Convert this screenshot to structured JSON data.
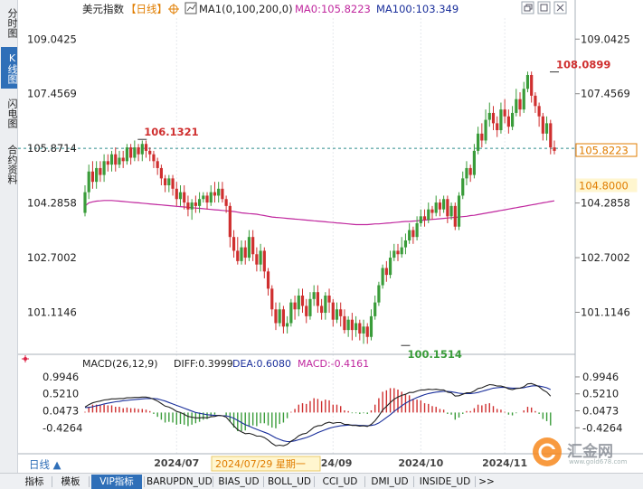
{
  "side_tabs": [
    "分时图",
    "K线图",
    "闪电图",
    "合约资料"
  ],
  "active_side_tab": 1,
  "header": {
    "name": "美元指数",
    "period": "【日线】",
    "ma_label": "MA1(0,100,200,0)",
    "ma0_label": "MA0:105.8223",
    "ma100_label": "MA100:103.349"
  },
  "header_colors": {
    "ma0": "#c0279e",
    "ma100": "#1a2f9b",
    "period": "#e07d00"
  },
  "bottom_tabs": [
    "指标",
    "模板",
    "VIP指标",
    "BARUPDN_UD",
    "BIAS_UD",
    "BOLL_UD",
    "CCI_UD",
    "DMI_UD",
    "INSIDE_UD",
    ">>"
  ],
  "active_bottom_tab": 2,
  "period_button": "日线 ▲",
  "crosshair_date": "2024/07/29 星期一",
  "watermark": "汇金网",
  "watermark_sub": "www.gold678.com",
  "icons": [
    "chart-type-icon",
    "window-restore-icon",
    "window-maximize-icon",
    "close-icon"
  ],
  "chart_data": [
    {
      "type": "candlestick",
      "title": "美元指数",
      "period": "日线",
      "y_ticks": [
        109.0425,
        107.4569,
        105.8714,
        104.2858,
        102.7002,
        101.1146
      ],
      "ylim": [
        100.0,
        109.6
      ],
      "x_tick_labels": [
        "2024/07",
        "024/09",
        "2024/10",
        "2024/11"
      ],
      "x_tick_positions": [
        24,
        65,
        88,
        110
      ],
      "current_price": 105.8223,
      "current_price_label": "105.8223",
      "reference_price_label": "105.8714",
      "cursor_price_label": "104.8000",
      "annotations": [
        {
          "text": "106.1321",
          "value": 106.1321,
          "index": 15,
          "kind": "high"
        },
        {
          "text": "108.0899",
          "value": 108.0899,
          "index": 123,
          "kind": "high"
        },
        {
          "text": "100.1514",
          "value": 100.1514,
          "index": 84,
          "kind": "low"
        }
      ],
      "candles": [
        [
          104.0,
          104.6,
          104.8,
          103.9
        ],
        [
          104.6,
          105.2,
          105.4,
          104.4
        ],
        [
          105.2,
          104.9,
          105.5,
          104.7
        ],
        [
          104.9,
          105.3,
          105.5,
          104.7
        ],
        [
          105.3,
          105.1,
          105.5,
          104.9
        ],
        [
          105.1,
          105.5,
          105.7,
          104.9
        ],
        [
          105.5,
          105.4,
          105.7,
          105.2
        ],
        [
          105.4,
          105.7,
          105.8,
          105.2
        ],
        [
          105.7,
          105.4,
          105.9,
          105.2
        ],
        [
          105.4,
          105.6,
          105.8,
          105.3
        ],
        [
          105.6,
          105.5,
          105.8,
          105.3
        ],
        [
          105.5,
          105.9,
          106.0,
          105.4
        ],
        [
          105.9,
          105.6,
          106.0,
          105.4
        ],
        [
          105.6,
          105.9,
          106.1,
          105.5
        ],
        [
          105.9,
          105.7,
          106.0,
          105.5
        ],
        [
          105.7,
          106.0,
          106.1,
          105.5
        ],
        [
          106.0,
          105.8,
          106.1,
          105.6
        ],
        [
          105.8,
          105.7,
          105.9,
          105.5
        ],
        [
          105.7,
          105.5,
          105.8,
          105.3
        ],
        [
          105.5,
          105.3,
          105.6,
          105.1
        ],
        [
          105.3,
          105.0,
          105.4,
          104.8
        ],
        [
          105.0,
          104.8,
          105.1,
          104.6
        ],
        [
          104.8,
          105.0,
          105.1,
          104.6
        ],
        [
          105.0,
          104.7,
          105.1,
          104.5
        ],
        [
          104.7,
          104.4,
          104.9,
          104.2
        ],
        [
          104.4,
          104.6,
          104.8,
          104.2
        ],
        [
          104.6,
          104.3,
          104.8,
          104.1
        ],
        [
          104.3,
          104.1,
          104.5,
          103.9
        ],
        [
          104.1,
          104.3,
          104.4,
          103.8
        ],
        [
          104.3,
          104.2,
          104.5,
          104.0
        ],
        [
          104.2,
          104.4,
          104.6,
          104.0
        ],
        [
          104.4,
          104.5,
          104.6,
          104.3
        ],
        [
          104.5,
          104.3,
          104.6,
          104.1
        ],
        [
          104.3,
          104.6,
          104.8,
          104.2
        ],
        [
          104.6,
          104.5,
          104.9,
          104.3
        ],
        [
          104.5,
          104.7,
          104.9,
          104.3
        ],
        [
          104.7,
          104.4,
          104.9,
          104.3
        ],
        [
          104.4,
          104.2,
          104.5,
          104.0
        ],
        [
          104.2,
          103.3,
          104.3,
          103.0
        ],
        [
          103.3,
          102.9,
          103.5,
          102.7
        ],
        [
          102.9,
          102.6,
          103.3,
          102.5
        ],
        [
          102.6,
          103.0,
          103.2,
          102.5
        ],
        [
          103.0,
          102.7,
          103.2,
          102.5
        ],
        [
          102.7,
          103.3,
          103.5,
          102.6
        ],
        [
          103.3,
          102.8,
          103.5,
          102.6
        ],
        [
          102.8,
          102.5,
          103.0,
          102.3
        ],
        [
          102.5,
          102.9,
          103.1,
          102.3
        ],
        [
          102.9,
          102.3,
          103.0,
          102.1
        ],
        [
          102.3,
          101.8,
          102.4,
          101.6
        ],
        [
          101.8,
          101.2,
          101.9,
          101.0
        ],
        [
          101.2,
          100.8,
          101.4,
          100.6
        ],
        [
          100.8,
          101.2,
          101.4,
          100.7
        ],
        [
          101.2,
          100.7,
          101.3,
          100.5
        ],
        [
          100.7,
          100.8,
          101.0,
          100.5
        ],
        [
          100.8,
          101.4,
          101.5,
          100.7
        ],
        [
          101.4,
          101.2,
          101.6,
          100.9
        ],
        [
          101.2,
          101.6,
          101.8,
          101.0
        ],
        [
          101.6,
          101.3,
          101.8,
          101.1
        ],
        [
          101.3,
          101.0,
          101.5,
          100.8
        ],
        [
          101.0,
          101.5,
          101.7,
          100.9
        ],
        [
          101.5,
          101.7,
          101.9,
          101.3
        ],
        [
          101.7,
          101.3,
          101.9,
          101.1
        ],
        [
          101.3,
          101.1,
          101.5,
          100.9
        ],
        [
          101.1,
          101.6,
          101.7,
          100.9
        ],
        [
          101.6,
          101.4,
          101.8,
          101.1
        ],
        [
          101.4,
          100.9,
          101.5,
          100.7
        ],
        [
          100.9,
          101.2,
          101.4,
          100.8
        ],
        [
          101.2,
          101.0,
          101.4,
          100.7
        ],
        [
          101.0,
          100.6,
          101.2,
          100.5
        ],
        [
          100.6,
          100.9,
          101.0,
          100.4
        ],
        [
          100.9,
          100.6,
          101.1,
          100.3
        ],
        [
          100.6,
          100.8,
          101.0,
          100.4
        ],
        [
          100.8,
          100.5,
          100.9,
          100.3
        ],
        [
          100.5,
          100.7,
          100.9,
          100.2
        ],
        [
          100.7,
          100.4,
          100.8,
          100.2
        ],
        [
          100.4,
          101.0,
          101.2,
          100.3
        ],
        [
          101.0,
          101.4,
          101.6,
          100.9
        ],
        [
          101.4,
          101.9,
          102.0,
          101.3
        ],
        [
          101.9,
          102.4,
          102.5,
          101.8
        ],
        [
          102.4,
          102.2,
          102.6,
          102.0
        ],
        [
          102.2,
          102.7,
          102.9,
          102.1
        ],
        [
          102.7,
          102.9,
          103.1,
          102.6
        ],
        [
          102.9,
          102.8,
          103.1,
          102.6
        ],
        [
          102.8,
          103.0,
          103.3,
          102.7
        ],
        [
          103.0,
          103.2,
          103.4,
          102.8
        ],
        [
          103.2,
          103.5,
          103.7,
          103.1
        ],
        [
          103.5,
          103.3,
          103.6,
          103.1
        ],
        [
          103.3,
          103.7,
          103.9,
          103.2
        ],
        [
          103.7,
          103.9,
          104.1,
          103.6
        ],
        [
          103.9,
          103.8,
          104.1,
          103.6
        ],
        [
          103.8,
          104.1,
          104.3,
          103.7
        ],
        [
          104.1,
          104.0,
          104.2,
          103.8
        ],
        [
          104.0,
          104.3,
          104.5,
          103.9
        ],
        [
          104.3,
          104.1,
          104.4,
          103.9
        ],
        [
          104.1,
          104.4,
          104.5,
          104.0
        ],
        [
          104.4,
          103.9,
          104.5,
          103.7
        ],
        [
          103.9,
          104.2,
          104.3,
          103.8
        ],
        [
          104.2,
          103.6,
          104.3,
          103.5
        ],
        [
          103.6,
          104.5,
          104.6,
          103.5
        ],
        [
          104.5,
          105.0,
          105.2,
          104.4
        ],
        [
          105.0,
          105.3,
          105.5,
          104.8
        ],
        [
          105.3,
          105.1,
          105.4,
          104.9
        ],
        [
          105.1,
          105.8,
          106.0,
          105.0
        ],
        [
          105.8,
          106.3,
          106.5,
          105.7
        ],
        [
          106.3,
          106.1,
          106.6,
          105.9
        ],
        [
          106.1,
          106.7,
          107.0,
          106.0
        ],
        [
          106.7,
          106.9,
          107.2,
          106.5
        ],
        [
          106.9,
          106.6,
          107.1,
          106.4
        ],
        [
          106.6,
          106.4,
          106.8,
          106.2
        ],
        [
          106.4,
          107.0,
          107.2,
          106.3
        ],
        [
          107.0,
          106.8,
          107.3,
          106.6
        ],
        [
          106.8,
          106.5,
          107.0,
          106.3
        ],
        [
          106.5,
          106.9,
          107.1,
          106.4
        ],
        [
          106.9,
          107.3,
          107.6,
          106.8
        ],
        [
          107.3,
          107.0,
          107.5,
          106.8
        ],
        [
          107.0,
          107.6,
          107.8,
          106.9
        ],
        [
          107.6,
          108.0,
          108.1,
          107.5
        ],
        [
          108.0,
          107.4,
          108.1,
          107.2
        ],
        [
          107.4,
          107.1,
          107.5,
          106.9
        ],
        [
          107.1,
          106.8,
          107.2,
          106.5
        ],
        [
          106.8,
          106.3,
          106.9,
          106.1
        ],
        [
          106.3,
          106.6,
          106.8,
          106.1
        ],
        [
          106.6,
          105.9,
          106.7,
          105.7
        ],
        [
          105.9,
          105.8,
          106.1,
          105.7
        ]
      ],
      "ma0": [
        104.2,
        104.29,
        104.32,
        104.34,
        104.35,
        104.36,
        104.36,
        104.36,
        104.35,
        104.34,
        104.33,
        104.32,
        104.31,
        104.3,
        104.29,
        104.28,
        104.27,
        104.26,
        104.25,
        104.24,
        104.23,
        104.22,
        104.21,
        104.2,
        104.19,
        104.18,
        104.17,
        104.16,
        104.15,
        104.14,
        104.13,
        104.12,
        104.11,
        104.1,
        104.09,
        104.08,
        104.07,
        104.06,
        104.05,
        104.04,
        104.02,
        104.0,
        103.99,
        103.98,
        103.97,
        103.96,
        103.94,
        103.92,
        103.9,
        103.88,
        103.87,
        103.86,
        103.85,
        103.84,
        103.83,
        103.82,
        103.81,
        103.8,
        103.79,
        103.78,
        103.77,
        103.76,
        103.75,
        103.74,
        103.73,
        103.72,
        103.71,
        103.7,
        103.69,
        103.68,
        103.67,
        103.66,
        103.66,
        103.66,
        103.66,
        103.67,
        103.68,
        103.68,
        103.69,
        103.7,
        103.71,
        103.72,
        103.73,
        103.74,
        103.75,
        103.75,
        103.76,
        103.77,
        103.78,
        103.79,
        103.8,
        103.81,
        103.82,
        103.83,
        103.84,
        103.85,
        103.86,
        103.87,
        103.88,
        103.89,
        103.9,
        103.92,
        103.93,
        103.95,
        103.97,
        103.99,
        104.01,
        104.03,
        104.05,
        104.07,
        104.09,
        104.11,
        104.13,
        104.15,
        104.17,
        104.19,
        104.21,
        104.23,
        104.25,
        104.27,
        104.29,
        104.31,
        104.33,
        104.35
      ]
    },
    {
      "type": "macd",
      "title": "MACD(26,12,9)",
      "diff_label": "DIFF:0.3999",
      "dea_label": "DEA:0.6080",
      "macd_label": "MACD:-0.4161",
      "y_ticks": [
        0.9946,
        0.521,
        0.0473,
        -0.4264
      ],
      "ylim": [
        -1.05,
        1.12
      ],
      "diff": [
        0.15,
        0.22,
        0.27,
        0.3,
        0.32,
        0.35,
        0.36,
        0.38,
        0.38,
        0.39,
        0.39,
        0.41,
        0.41,
        0.42,
        0.42,
        0.43,
        0.43,
        0.41,
        0.37,
        0.32,
        0.25,
        0.18,
        0.15,
        0.1,
        0.03,
        0.0,
        -0.05,
        -0.11,
        -0.13,
        -0.15,
        -0.15,
        -0.14,
        -0.15,
        -0.12,
        -0.11,
        -0.08,
        -0.09,
        -0.13,
        -0.25,
        -0.37,
        -0.48,
        -0.54,
        -0.59,
        -0.58,
        -0.61,
        -0.66,
        -0.66,
        -0.7,
        -0.77,
        -0.86,
        -0.93,
        -0.91,
        -0.93,
        -0.89,
        -0.8,
        -0.74,
        -0.65,
        -0.6,
        -0.58,
        -0.5,
        -0.41,
        -0.37,
        -0.36,
        -0.3,
        -0.27,
        -0.3,
        -0.28,
        -0.28,
        -0.33,
        -0.33,
        -0.36,
        -0.36,
        -0.38,
        -0.37,
        -0.39,
        -0.33,
        -0.23,
        -0.09,
        0.07,
        0.17,
        0.28,
        0.37,
        0.43,
        0.48,
        0.51,
        0.56,
        0.56,
        0.6,
        0.63,
        0.63,
        0.65,
        0.64,
        0.65,
        0.63,
        0.63,
        0.57,
        0.55,
        0.46,
        0.47,
        0.51,
        0.55,
        0.55,
        0.6,
        0.67,
        0.69,
        0.74,
        0.78,
        0.77,
        0.74,
        0.74,
        0.71,
        0.66,
        0.64,
        0.67,
        0.68,
        0.72,
        0.8,
        0.81,
        0.77,
        0.72,
        0.63,
        0.57,
        0.46
      ],
      "dea": [
        0.14,
        0.14,
        0.16,
        0.19,
        0.21,
        0.24,
        0.26,
        0.28,
        0.3,
        0.31,
        0.33,
        0.34,
        0.35,
        0.36,
        0.37,
        0.38,
        0.39,
        0.39,
        0.39,
        0.38,
        0.35,
        0.32,
        0.28,
        0.24,
        0.2,
        0.16,
        0.12,
        0.08,
        0.04,
        0.0,
        -0.02,
        -0.04,
        -0.06,
        -0.07,
        -0.08,
        -0.08,
        -0.09,
        -0.09,
        -0.12,
        -0.16,
        -0.22,
        -0.28,
        -0.34,
        -0.38,
        -0.43,
        -0.47,
        -0.51,
        -0.55,
        -0.59,
        -0.65,
        -0.71,
        -0.75,
        -0.79,
        -0.81,
        -0.81,
        -0.79,
        -0.76,
        -0.73,
        -0.7,
        -0.66,
        -0.61,
        -0.56,
        -0.52,
        -0.48,
        -0.44,
        -0.41,
        -0.39,
        -0.37,
        -0.36,
        -0.35,
        -0.35,
        -0.35,
        -0.36,
        -0.36,
        -0.37,
        -0.36,
        -0.34,
        -0.29,
        -0.22,
        -0.14,
        -0.06,
        0.03,
        0.11,
        0.19,
        0.26,
        0.32,
        0.37,
        0.42,
        0.46,
        0.5,
        0.53,
        0.55,
        0.57,
        0.58,
        0.59,
        0.59,
        0.58,
        0.56,
        0.54,
        0.53,
        0.53,
        0.53,
        0.54,
        0.56,
        0.59,
        0.62,
        0.65,
        0.68,
        0.69,
        0.7,
        0.7,
        0.69,
        0.68,
        0.68,
        0.68,
        0.69,
        0.72,
        0.74,
        0.75,
        0.74,
        0.72,
        0.69,
        0.64
      ]
    }
  ]
}
